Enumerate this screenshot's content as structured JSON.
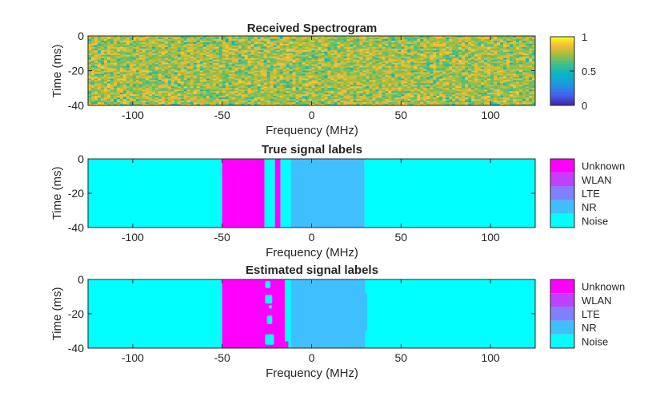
{
  "chart_data": [
    {
      "type": "heatmap",
      "title": "Received Spectrogram",
      "xlabel": "Frequency (MHz)",
      "ylabel": "Time (ms)",
      "xlim": [
        -125,
        125
      ],
      "ylim": [
        -40,
        0
      ],
      "xticks": [
        "-100",
        "-50",
        "0",
        "50",
        "100"
      ],
      "xtick_values": [
        -100,
        -50,
        0,
        50,
        100
      ],
      "yticks": [
        "0",
        "-20",
        "-40"
      ],
      "ytick_values": [
        0,
        -20,
        -40
      ],
      "colormap": "parula",
      "colorbar": {
        "ticks": [
          "0",
          "0.5",
          "1"
        ],
        "tick_values": [
          0,
          0.5,
          1
        ],
        "range": [
          0,
          1
        ]
      },
      "values_description_range": [
        0.55,
        0.95
      ]
    },
    {
      "type": "heatmap",
      "title": "True signal labels",
      "xlabel": "Frequency (MHz)",
      "ylabel": "Time (ms)",
      "xlim": [
        -125,
        125
      ],
      "ylim": [
        -40,
        0
      ],
      "xticks": [
        "-100",
        "-50",
        "0",
        "50",
        "100"
      ],
      "xtick_values": [
        -100,
        -50,
        0,
        50,
        100
      ],
      "yticks": [
        "0",
        "-20",
        "-40"
      ],
      "ytick_values": [
        0,
        -20,
        -40
      ],
      "colorbar": {
        "labels": [
          "Unknown",
          "WLAN",
          "LTE",
          "NR",
          "Noise"
        ],
        "colors": [
          "#ff00ff",
          "#bf40ff",
          "#8080ff",
          "#40bfff",
          "#00ffff"
        ]
      },
      "segments": [
        {
          "label": "Noise",
          "from": -125,
          "to": -50
        },
        {
          "label": "Unknown",
          "from": -50,
          "to": -26.3
        },
        {
          "label": "Noise",
          "from": -26.3,
          "to": -20.5
        },
        {
          "label": "Unknown",
          "from": -20.5,
          "to": -17.4
        },
        {
          "label": "Noise",
          "from": -17.4,
          "to": -11.6
        },
        {
          "label": "NR",
          "from": -11.6,
          "to": 29.5
        },
        {
          "label": "Noise",
          "from": 29.5,
          "to": 125
        }
      ]
    },
    {
      "type": "heatmap",
      "title": "Estimated signal labels",
      "xlabel": "Frequency (MHz)",
      "ylabel": "Time (ms)",
      "xlim": [
        -125,
        125
      ],
      "ylim": [
        -40,
        0
      ],
      "xticks": [
        "-100",
        "-50",
        "0",
        "50",
        "100"
      ],
      "xtick_values": [
        -100,
        -50,
        0,
        50,
        100
      ],
      "yticks": [
        "0",
        "-20",
        "-40"
      ],
      "ytick_values": [
        0,
        -20,
        -40
      ],
      "colorbar": {
        "labels": [
          "Unknown",
          "WLAN",
          "LTE",
          "NR",
          "Noise"
        ],
        "colors": [
          "#ff00ff",
          "#bf40ff",
          "#8080ff",
          "#40bfff",
          "#00ffff"
        ]
      },
      "segments": [
        {
          "label": "Noise",
          "from": -125,
          "to": -50
        },
        {
          "label": "Unknown",
          "from": -50,
          "to": -15
        },
        {
          "label": "Noise",
          "from": -15,
          "to": -11.6
        },
        {
          "label": "NR",
          "from": -11.6,
          "to": 30
        },
        {
          "label": "Noise",
          "from": 30,
          "to": 125
        }
      ],
      "patches": [
        {
          "label": "Noise",
          "f": [
            -26,
            -23
          ],
          "t": [
            -5,
            -1
          ]
        },
        {
          "label": "Noise",
          "f": [
            -26,
            -22
          ],
          "t": [
            -14,
            -9
          ]
        },
        {
          "label": "Noise",
          "f": [
            -24,
            -22
          ],
          "t": [
            -17,
            -15
          ]
        },
        {
          "label": "Noise",
          "f": [
            -25,
            -22
          ],
          "t": [
            -26,
            -21
          ]
        },
        {
          "label": "Noise",
          "f": [
            -26,
            -21
          ],
          "t": [
            -38,
            -32
          ]
        },
        {
          "label": "Unknown",
          "f": [
            -15,
            -13
          ],
          "t": [
            -40,
            -36
          ]
        },
        {
          "label": "NR",
          "f": [
            29.5,
            31
          ],
          "t": [
            -30,
            -8
          ]
        }
      ]
    }
  ]
}
